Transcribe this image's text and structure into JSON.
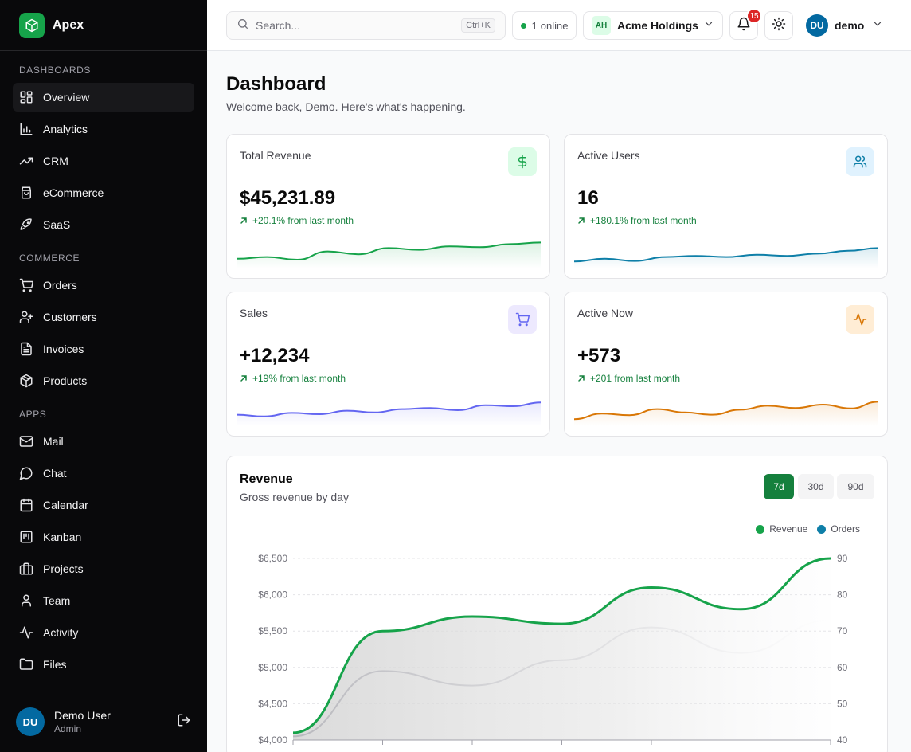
{
  "brand": {
    "name": "Apex"
  },
  "sidebar": {
    "sections": [
      {
        "title": "DASHBOARDS",
        "items": [
          {
            "label": "Overview",
            "icon": "layout-grid-icon",
            "active": true
          },
          {
            "label": "Analytics",
            "icon": "bar-chart-icon"
          },
          {
            "label": "CRM",
            "icon": "trending-up-icon"
          },
          {
            "label": "eCommerce",
            "icon": "shopping-bag-icon"
          },
          {
            "label": "SaaS",
            "icon": "rocket-icon"
          }
        ]
      },
      {
        "title": "COMMERCE",
        "items": [
          {
            "label": "Orders",
            "icon": "cart-icon"
          },
          {
            "label": "Customers",
            "icon": "user-plus-icon"
          },
          {
            "label": "Invoices",
            "icon": "file-text-icon"
          },
          {
            "label": "Products",
            "icon": "package-icon"
          }
        ]
      },
      {
        "title": "APPS",
        "items": [
          {
            "label": "Mail",
            "icon": "mail-icon"
          },
          {
            "label": "Chat",
            "icon": "message-circle-icon"
          },
          {
            "label": "Calendar",
            "icon": "calendar-icon"
          },
          {
            "label": "Kanban",
            "icon": "kanban-icon"
          },
          {
            "label": "Projects",
            "icon": "briefcase-icon"
          },
          {
            "label": "Team",
            "icon": "user-icon"
          },
          {
            "label": "Activity",
            "icon": "activity-icon"
          },
          {
            "label": "Files",
            "icon": "folder-icon"
          }
        ]
      }
    ],
    "user": {
      "initials": "DU",
      "name": "Demo User",
      "role": "Admin"
    }
  },
  "topbar": {
    "search_placeholder": "Search...",
    "search_shortcut": "Ctrl+K",
    "online_count": "1",
    "online_label": "online",
    "org_initials": "AH",
    "org_name": "Acme Holdings",
    "notification_count": "15",
    "profile_initials": "DU",
    "profile_name": "demo"
  },
  "page": {
    "title": "Dashboard",
    "subtitle": "Welcome back, Demo. Here's what's happening."
  },
  "stats": [
    {
      "title": "Total Revenue",
      "value": "$45,231.89",
      "delta": "+20.1% from last month",
      "icon": "dollar-icon",
      "color": "#16a34a",
      "tint": "#dcfce7",
      "spark": [
        0.22,
        0.3,
        0.18,
        0.55,
        0.42,
        0.7,
        0.62,
        0.78,
        0.74,
        0.88,
        0.95
      ]
    },
    {
      "title": "Active Users",
      "value": "16",
      "delta": "+180.1% from last month",
      "icon": "users-icon",
      "color": "#0e7fa8",
      "tint": "#e0f2fe",
      "spark": [
        0.1,
        0.22,
        0.12,
        0.3,
        0.35,
        0.3,
        0.4,
        0.35,
        0.45,
        0.58,
        0.7
      ]
    },
    {
      "title": "Sales",
      "value": "+12,234",
      "delta": "+19% from last month",
      "icon": "cart-icon",
      "color": "#6366f1",
      "tint": "#ede9fe",
      "spark": [
        0.3,
        0.22,
        0.38,
        0.32,
        0.48,
        0.4,
        0.55,
        0.6,
        0.5,
        0.72,
        0.68,
        0.85
      ]
    },
    {
      "title": "Active Now",
      "value": "+573",
      "delta": "+201 from last month",
      "icon": "activity-icon",
      "color": "#d97706",
      "tint": "#ffedd5",
      "spark": [
        0.1,
        0.35,
        0.28,
        0.55,
        0.4,
        0.3,
        0.52,
        0.7,
        0.6,
        0.75,
        0.58,
        0.88
      ]
    }
  ],
  "revenue": {
    "title": "Revenue",
    "subtitle": "Gross revenue by day",
    "ranges": [
      {
        "label": "7d",
        "active": true
      },
      {
        "label": "30d"
      },
      {
        "label": "90d"
      }
    ]
  },
  "chart_data": {
    "type": "line",
    "series": [
      {
        "name": "Revenue",
        "axis": "left",
        "color": "#16a34a",
        "values": [
          4100,
          5500,
          5700,
          5600,
          6100,
          5800,
          6500
        ]
      },
      {
        "name": "Orders",
        "axis": "right",
        "color": "#0e7fa8",
        "values": [
          41,
          59,
          55,
          62,
          71,
          64,
          73
        ]
      }
    ],
    "y_left": {
      "ticks": [
        "$6,500",
        "$6,000",
        "$5,500",
        "$5,000",
        "$4,500",
        "$4,000"
      ],
      "range": [
        4000,
        6500
      ]
    },
    "y_right": {
      "ticks": [
        "90",
        "80",
        "70",
        "60",
        "50",
        "40"
      ],
      "range": [
        40,
        90
      ]
    },
    "legend_position": "top-right",
    "grid": true
  }
}
